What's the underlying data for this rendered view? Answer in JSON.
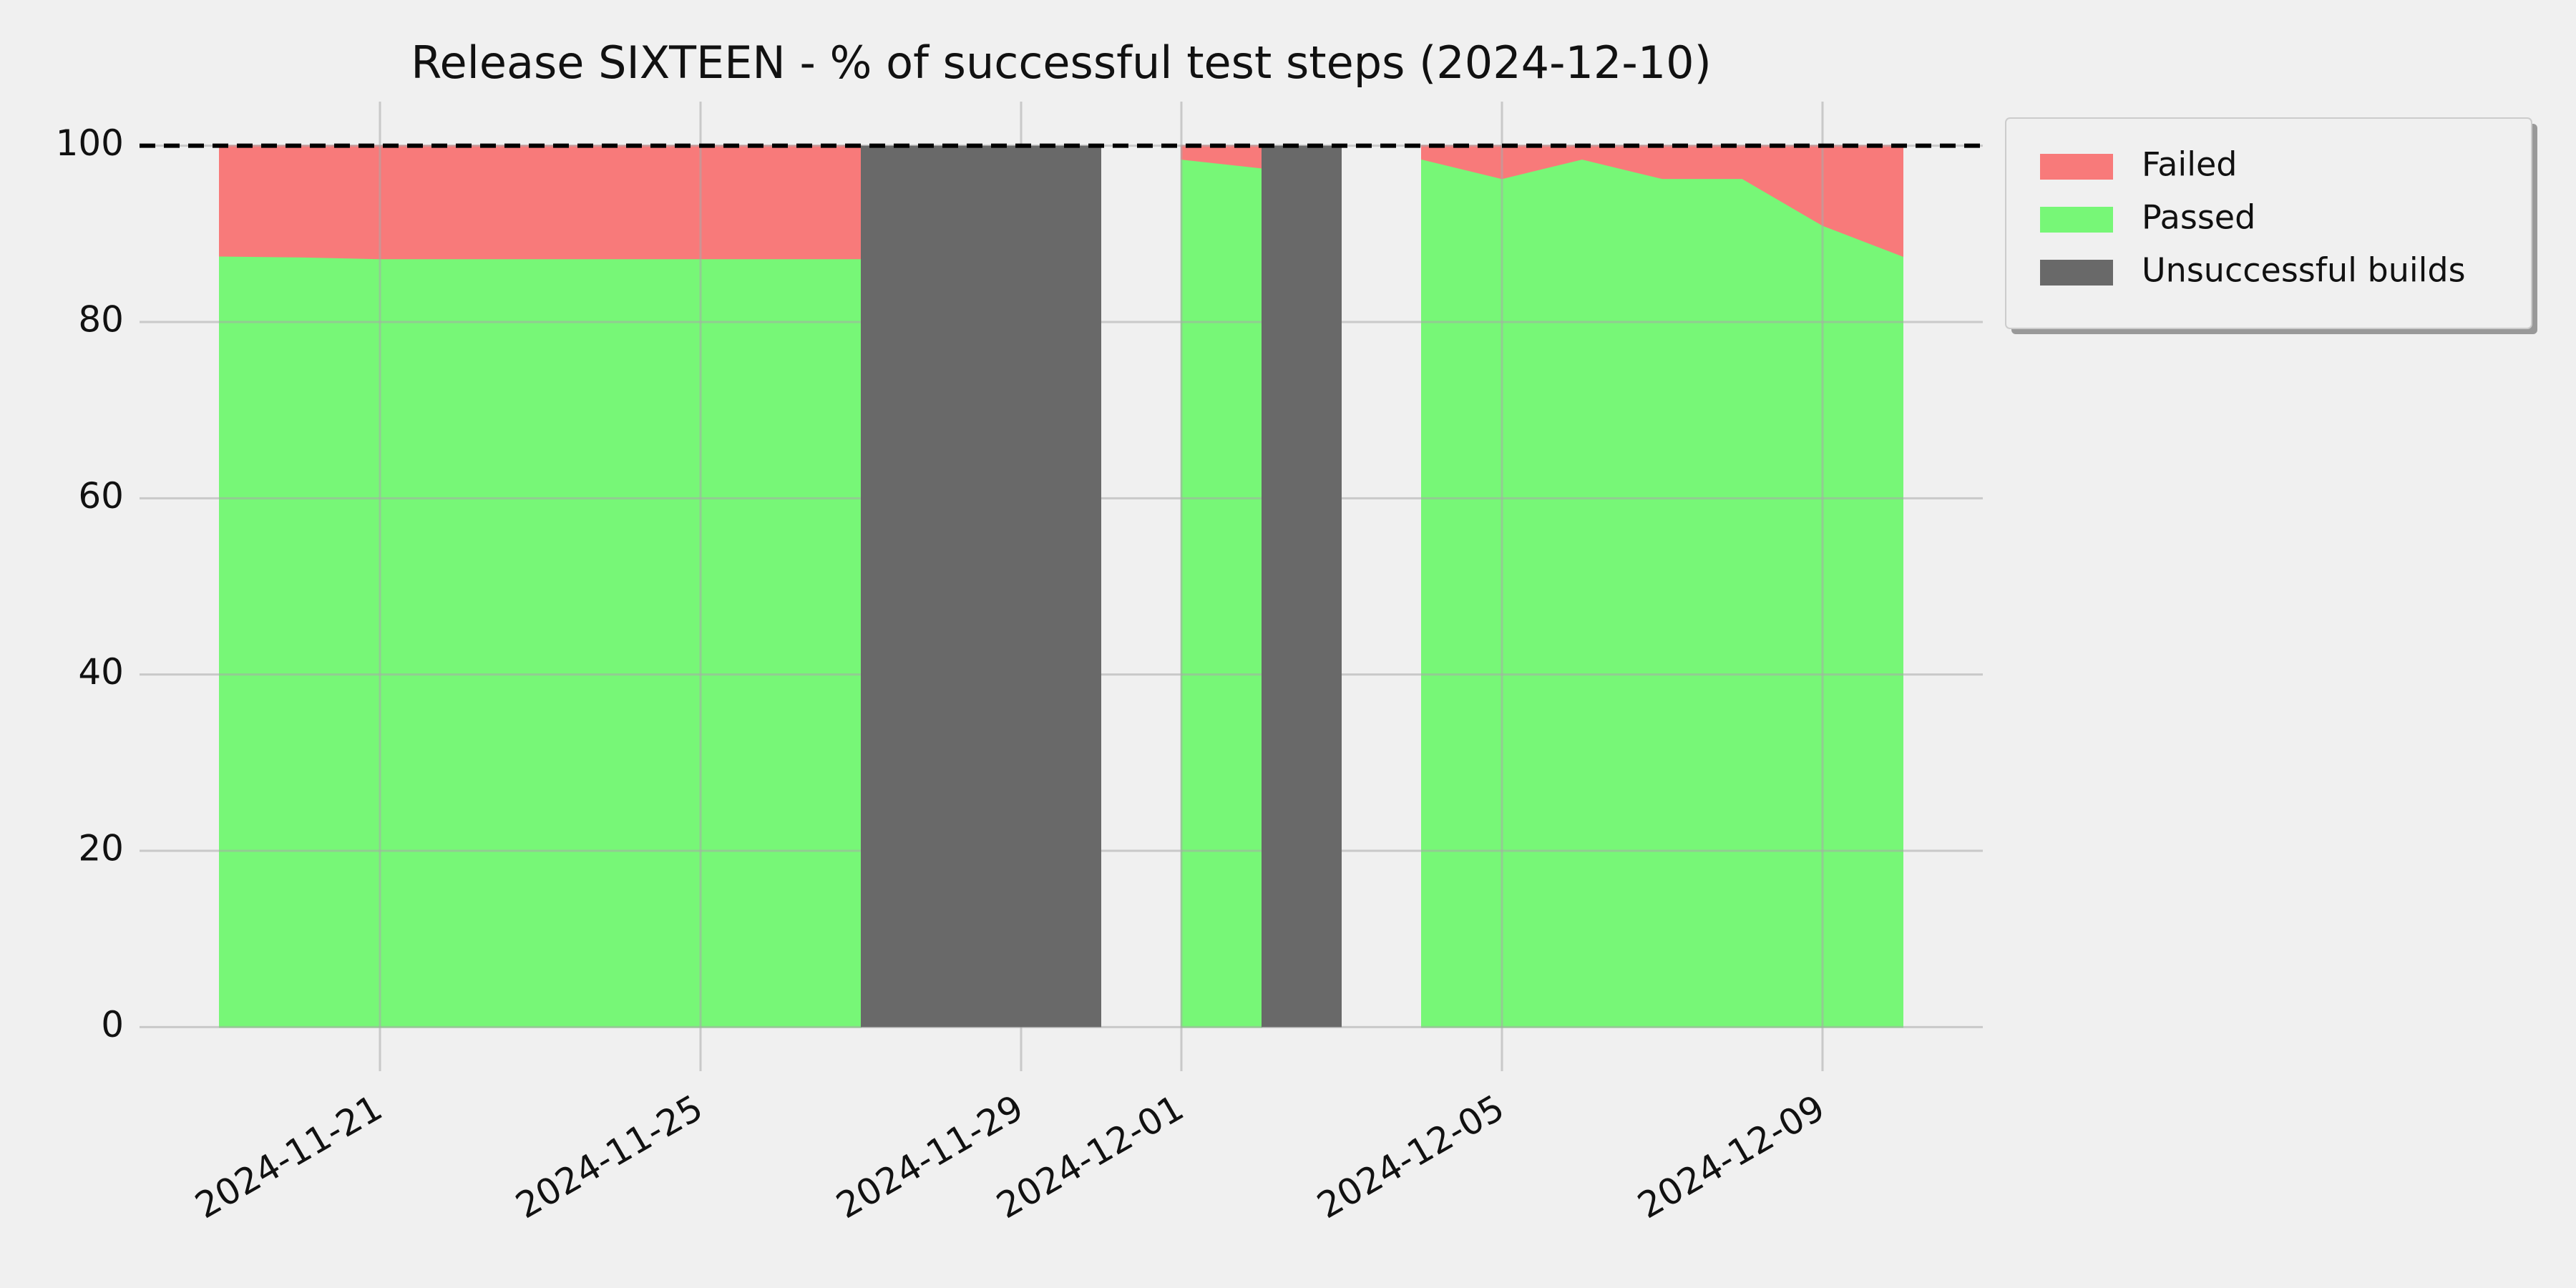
{
  "chart_data": {
    "type": "stacked-area",
    "title": "Release SIXTEEN - % of successful test steps (2024-12-10)",
    "x": [
      "2024-11-19",
      "2024-11-20",
      "2024-11-21",
      "2024-11-22",
      "2024-11-23",
      "2024-11-24",
      "2024-11-25",
      "2024-11-26",
      "2024-11-27",
      "2024-11-28",
      "2024-11-29",
      "2024-11-30",
      "2024-12-01",
      "2024-12-02",
      "2024-12-03",
      "2024-12-04",
      "2024-12-05",
      "2024-12-06",
      "2024-12-07",
      "2024-12-08",
      "2024-12-09",
      "2024-12-10"
    ],
    "series": [
      {
        "name": "Failed",
        "color": "#f87a7a",
        "values": [
          12.5,
          12.6,
          12.8,
          12.8,
          12.8,
          12.8,
          12.8,
          12.8,
          12.8,
          null,
          null,
          null,
          1.5,
          2.5,
          null,
          1.5,
          3.7,
          1.5,
          3.7,
          3.7,
          9,
          12.5
        ]
      },
      {
        "name": "Passed",
        "color": "#77f777",
        "values": [
          87.5,
          87.4,
          87.2,
          87.2,
          87.2,
          87.2,
          87.2,
          87.2,
          87.2,
          null,
          null,
          null,
          98.5,
          97.5,
          null,
          98.5,
          96.3,
          98.5,
          96.3,
          96.3,
          91,
          87.5
        ]
      }
    ],
    "spans": {
      "name": "Unsuccessful builds",
      "color": "#696969",
      "ranges": [
        [
          "2024-11-27",
          "2024-11-30"
        ],
        [
          "2024-12-02",
          "2024-12-03"
        ]
      ]
    },
    "hline": 100,
    "xlim": [
      "2024-11-18",
      "2024-12-11"
    ],
    "xticks": [
      "2024-11-21",
      "2024-11-25",
      "2024-11-29",
      "2024-12-01",
      "2024-12-05",
      "2024-12-09"
    ],
    "ylim": [
      -5,
      105
    ],
    "yticks": [
      0,
      20,
      40,
      60,
      80,
      100
    ],
    "grid": true,
    "legend": "outside right"
  }
}
